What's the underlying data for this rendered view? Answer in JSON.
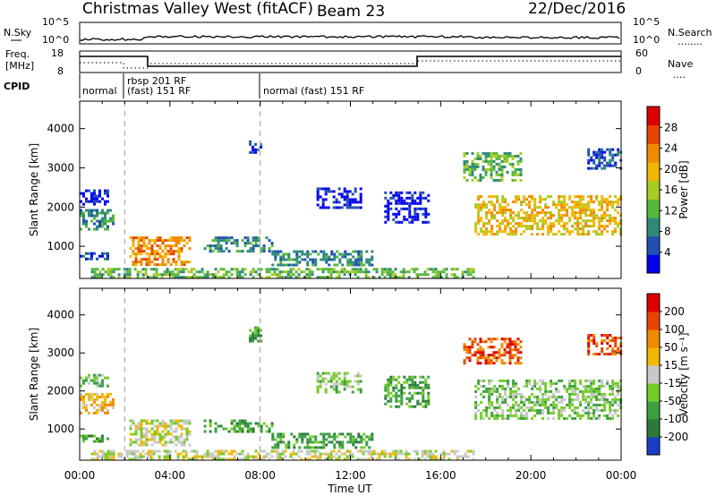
{
  "header": {
    "radar_name": "Christmas Valley West (fitACF)",
    "beam_label": "Beam 23",
    "date": "22/Dec/2016"
  },
  "top_panel": {
    "left_label": "N.Sky",
    "left_ticks": [
      "10^5",
      "10^0"
    ],
    "right_ticks": [
      "10^5",
      "10^0"
    ],
    "right_label": "N.Search",
    "right_legend": "........"
  },
  "freq_panel": {
    "left_label_line1": "Freq.",
    "left_label_line2": "[MHz]",
    "left_ticks": [
      "18",
      "8"
    ],
    "right_ticks": [
      "60",
      "0"
    ],
    "right_label": "Nave",
    "right_legend": "...."
  },
  "cpid_panel": {
    "label": "CPID",
    "segments": [
      "normal",
      "rbsp 201 RF",
      "(fast) 151 RF",
      "normal (fast) 151 RF"
    ]
  },
  "colors": {
    "power_scale": [
      "#0000ee",
      "#2050b0",
      "#2e8a78",
      "#56b83c",
      "#a8cc22",
      "#f0b800",
      "#f08a00",
      "#e84400",
      "#dd0000"
    ],
    "velocity_scale": [
      "#1a3cc8",
      "#2b7a3a",
      "#3ca043",
      "#74cc2a",
      "#c8c8c8",
      "#f0b800",
      "#f08a00",
      "#e84400",
      "#dd0000"
    ],
    "background_scatter": "#c8c8c8"
  },
  "chart_data": [
    {
      "type": "heatmap",
      "name": "power",
      "ylabel": "Slant Range [km]",
      "yticks": [
        1000,
        2000,
        3000,
        4000
      ],
      "ylim": [
        180,
        4700
      ],
      "xticks": [
        "00:00",
        "04:00",
        "08:00",
        "12:00",
        "16:00",
        "20:00",
        "00:00"
      ],
      "xlim_hours": [
        0,
        24
      ],
      "colorbar_label": "Power [dB]",
      "colorbar_ticks": [
        "28",
        "24",
        "20",
        "16",
        "12",
        "8",
        "4"
      ],
      "dashed_markers_hours": [
        2,
        8
      ],
      "regions": [
        {
          "t0": 0.0,
          "t1": 1.5,
          "r0": 1450,
          "r1": 1950,
          "level": 3
        },
        {
          "t0": 0.0,
          "t1": 1.2,
          "r0": 2100,
          "r1": 2450,
          "level": 1
        },
        {
          "t0": 0.0,
          "t1": 1.3,
          "r0": 650,
          "r1": 850,
          "level": 2
        },
        {
          "t0": 2.2,
          "t1": 4.9,
          "r0": 550,
          "r1": 1250,
          "level": 7
        },
        {
          "t0": 5.5,
          "t1": 8.5,
          "r0": 900,
          "r1": 1250,
          "level": 3
        },
        {
          "t0": 8.5,
          "t1": 13.0,
          "r0": 500,
          "r1": 900,
          "level": 3
        },
        {
          "t0": 0.5,
          "t1": 17.5,
          "r0": 180,
          "r1": 450,
          "level": 4
        },
        {
          "t0": 10.5,
          "t1": 12.5,
          "r0": 2000,
          "r1": 2500,
          "level": 1
        },
        {
          "t0": 13.5,
          "t1": 15.5,
          "r0": 1600,
          "r1": 2400,
          "level": 1
        },
        {
          "t0": 17.5,
          "t1": 24.0,
          "r0": 1300,
          "r1": 2300,
          "level": 6
        },
        {
          "t0": 17.0,
          "t1": 19.5,
          "r0": 2700,
          "r1": 3400,
          "level": 4
        },
        {
          "t0": 22.5,
          "t1": 24.0,
          "r0": 3000,
          "r1": 3500,
          "level": 2
        },
        {
          "t0": 7.5,
          "t1": 8.0,
          "r0": 3300,
          "r1": 3700,
          "level": 2
        }
      ]
    },
    {
      "type": "heatmap",
      "name": "velocity",
      "ylabel": "Slant Range [km]",
      "yticks": [
        1000,
        2000,
        3000,
        4000
      ],
      "ylim": [
        180,
        4700
      ],
      "xticks": [
        "00:00",
        "04:00",
        "08:00",
        "12:00",
        "16:00",
        "20:00",
        "00:00"
      ],
      "xlim_hours": [
        0,
        24
      ],
      "xlabel": "Time UT",
      "colorbar_label": "Velocity [m s⁻¹]",
      "colorbar_ticks": [
        "200",
        "100",
        "50",
        "15",
        "-15",
        "-50",
        "-100",
        "-200"
      ],
      "dashed_markers_hours": [
        2,
        8
      ],
      "regions": [
        {
          "t0": 0.0,
          "t1": 1.5,
          "r0": 1450,
          "r1": 1950,
          "level": 6
        },
        {
          "t0": 0.0,
          "t1": 1.2,
          "r0": 2100,
          "r1": 2450,
          "level": 4
        },
        {
          "t0": 0.0,
          "t1": 1.3,
          "r0": 650,
          "r1": 850,
          "level": 3
        },
        {
          "t0": 2.2,
          "t1": 4.9,
          "r0": 550,
          "r1": 1250,
          "level": 5
        },
        {
          "t0": 5.5,
          "t1": 8.5,
          "r0": 900,
          "r1": 1250,
          "level": 3
        },
        {
          "t0": 8.5,
          "t1": 13.0,
          "r0": 500,
          "r1": 900,
          "level": 3
        },
        {
          "t0": 0.5,
          "t1": 17.5,
          "r0": 180,
          "r1": 450,
          "level": 5
        },
        {
          "t0": 10.5,
          "t1": 12.5,
          "r0": 2000,
          "r1": 2500,
          "level": 4
        },
        {
          "t0": 13.5,
          "t1": 15.5,
          "r0": 1600,
          "r1": 2400,
          "level": 3
        },
        {
          "t0": 17.5,
          "t1": 24.0,
          "r0": 1300,
          "r1": 2300,
          "level": 4
        },
        {
          "t0": 17.0,
          "t1": 19.5,
          "r0": 2700,
          "r1": 3400,
          "level": 8
        },
        {
          "t0": 22.5,
          "t1": 24.0,
          "r0": 3000,
          "r1": 3500,
          "level": 8
        },
        {
          "t0": 7.5,
          "t1": 8.0,
          "r0": 3300,
          "r1": 3700,
          "level": 3
        }
      ]
    }
  ]
}
